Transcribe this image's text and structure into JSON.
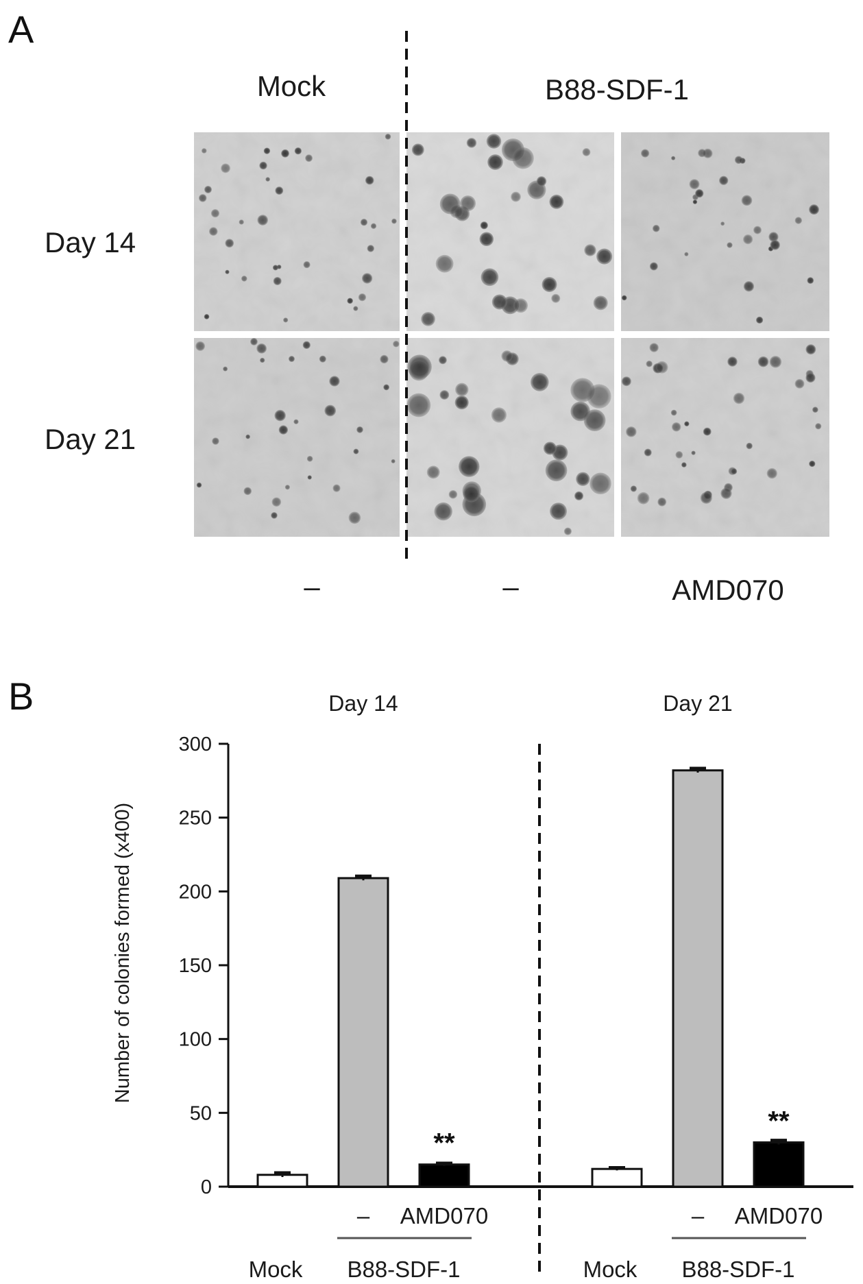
{
  "panel_a": {
    "letter": "A",
    "columns": [
      {
        "label": "Mock"
      },
      {
        "label": "B88-SDF-1"
      }
    ],
    "rows": [
      {
        "label": "Day 14"
      },
      {
        "label": "Day 21"
      }
    ],
    "treatments": [
      "–",
      "–",
      "AMD070"
    ],
    "image_tone": "#cdcdcd"
  },
  "panel_b": {
    "letter": "B",
    "chart_data": {
      "type": "bar",
      "title": "",
      "ylabel": "Number of colonies formed (x400)",
      "ylim": [
        0,
        300
      ],
      "yticks": [
        0,
        50,
        100,
        150,
        200,
        250,
        300
      ],
      "groups": [
        {
          "label": "Day 14",
          "bars": [
            {
              "condition": "Mock",
              "value": 8,
              "error": 1.5,
              "color": "#ffffff",
              "sig": ""
            },
            {
              "condition": "B88-SDF-1 –",
              "value": 209,
              "error": 1.5,
              "color": "#bdbdbd",
              "sig": ""
            },
            {
              "condition": "B88-SDF-1 AMD070",
              "value": 15,
              "error": 1,
              "color": "#000000",
              "sig": "**"
            }
          ]
        },
        {
          "label": "Day 21",
          "bars": [
            {
              "condition": "Mock",
              "value": 12,
              "error": 1,
              "color": "#ffffff",
              "sig": ""
            },
            {
              "condition": "B88-SDF-1 –",
              "value": 282,
              "error": 1.5,
              "color": "#bdbdbd",
              "sig": ""
            },
            {
              "condition": "B88-SDF-1 AMD070",
              "value": 30,
              "error": 1.5,
              "color": "#000000",
              "sig": "**"
            }
          ]
        }
      ],
      "x_sub_labels": [
        "–",
        "AMD070"
      ],
      "x_main_labels": [
        "Mock",
        "B88-SDF-1"
      ]
    }
  }
}
